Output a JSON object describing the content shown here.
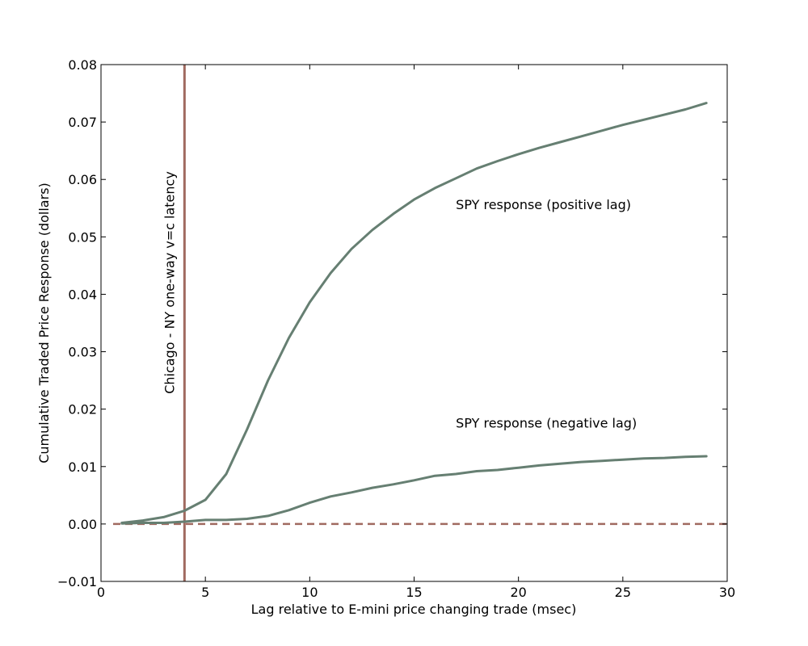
{
  "chart_data": {
    "type": "line",
    "title": "",
    "xlabel": "Lag relative to E-mini price changing trade (msec)",
    "ylabel": "Cumulative Traded Price Response (dollars)",
    "xlim": [
      0,
      30
    ],
    "ylim": [
      -0.01,
      0.08
    ],
    "x_ticks": [
      0,
      5,
      10,
      15,
      20,
      25,
      30
    ],
    "y_ticks": [
      -0.01,
      0.0,
      0.01,
      0.02,
      0.03,
      0.04,
      0.05,
      0.06,
      0.07,
      0.08
    ],
    "x_tick_labels": [
      "0",
      "5",
      "10",
      "15",
      "20",
      "25",
      "30"
    ],
    "y_tick_labels": [
      "−0.01",
      "0.00",
      "0.01",
      "0.02",
      "0.03",
      "0.04",
      "0.05",
      "0.06",
      "0.07",
      "0.08"
    ],
    "grid": false,
    "colors": {
      "series": "#667f72",
      "reference": "#a06a60"
    },
    "series": [
      {
        "label": "SPY response (positive lag)",
        "x": [
          1,
          2,
          3,
          4,
          5,
          6,
          7,
          8,
          9,
          10,
          11,
          12,
          13,
          14,
          15,
          16,
          17,
          18,
          19,
          20,
          21,
          22,
          23,
          24,
          25,
          26,
          27,
          28,
          29
        ],
        "values": [
          0.0002,
          0.0006,
          0.0012,
          0.0023,
          0.0042,
          0.0087,
          0.0165,
          0.025,
          0.0324,
          0.0386,
          0.0437,
          0.0479,
          0.0512,
          0.054,
          0.0565,
          0.0585,
          0.0602,
          0.0619,
          0.0632,
          0.0644,
          0.0655,
          0.0665,
          0.0675,
          0.0685,
          0.0695,
          0.0704,
          0.0713,
          0.0722,
          0.0733
        ]
      },
      {
        "label": "SPY response (negative lag)",
        "x": [
          1,
          2,
          3,
          4,
          5,
          6,
          7,
          8,
          9,
          10,
          11,
          12,
          13,
          14,
          15,
          16,
          17,
          18,
          19,
          20,
          21,
          22,
          23,
          24,
          25,
          26,
          27,
          28,
          29
        ],
        "values": [
          0.0001,
          0.0002,
          0.0002,
          0.0004,
          0.0007,
          0.0007,
          0.0009,
          0.0014,
          0.0024,
          0.0037,
          0.0048,
          0.0055,
          0.0063,
          0.0069,
          0.0076,
          0.0084,
          0.0087,
          0.0092,
          0.0094,
          0.0098,
          0.0102,
          0.0105,
          0.0108,
          0.011,
          0.0112,
          0.0114,
          0.0115,
          0.0117,
          0.0118
        ]
      }
    ],
    "reference_lines": [
      {
        "orientation": "vertical",
        "x": 4,
        "style": "solid",
        "label": "Chicago - NY one-way v=c latency"
      },
      {
        "orientation": "horizontal",
        "y": 0,
        "style": "dashed",
        "label": ""
      }
    ],
    "annotations": [
      {
        "text": "SPY response (positive lag)",
        "x": 17,
        "y": 0.0555
      },
      {
        "text": "SPY response (negative lag)",
        "x": 17,
        "y": 0.0175
      }
    ]
  }
}
